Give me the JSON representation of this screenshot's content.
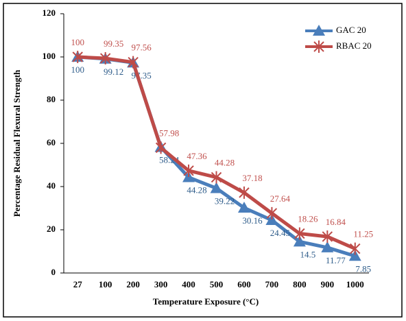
{
  "chart_data": {
    "type": "line",
    "xlabel": "Temperature Exposure (°C)",
    "ylabel": "Percentage Residual Flexural Strength",
    "categories": [
      "27",
      "100",
      "200",
      "300",
      "400",
      "500",
      "600",
      "700",
      "800",
      "900",
      "1000"
    ],
    "series": [
      {
        "name": "GAC 20",
        "color": "#4a7ebb",
        "marker": "triangle",
        "label_color": "#2e5c8a",
        "values": [
          100,
          99.12,
          97.35,
          58.24,
          44.28,
          39.22,
          30.16,
          24.45,
          14.5,
          11.77,
          7.85
        ]
      },
      {
        "name": "RBAC 20",
        "color": "#be4b48",
        "marker": "asterisk",
        "label_color": "#c0504d",
        "values": [
          100,
          99.35,
          97.56,
          57.98,
          47.36,
          44.28,
          37.18,
          27.64,
          18.26,
          16.84,
          11.25
        ]
      }
    ],
    "ylim": [
      0,
      120
    ],
    "yticks": [
      0,
      20,
      40,
      60,
      80,
      100,
      120
    ],
    "grid": false,
    "legend": "upper right"
  }
}
